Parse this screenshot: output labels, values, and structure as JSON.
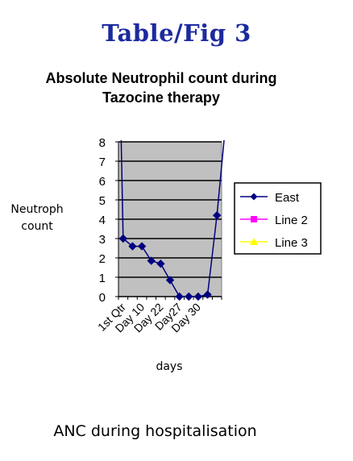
{
  "figure_title": "Table/Fig 3",
  "caption": "ANC during hospitalisation",
  "colors": {
    "title_blue": "#1c2a9e",
    "plot_background": "#c0c0c0",
    "series_east": "#000080",
    "series_line2": "#ff00ff",
    "series_line3": "#ffff00"
  },
  "chart_data": {
    "type": "line",
    "title": "Absolute Neutrophil count during Tazocine therapy",
    "title_lines": [
      "Absolute Neutrophil count during",
      "Tazocine therapy"
    ],
    "xlabel": "days",
    "ylabel": "Neutroph count",
    "ylabel_lines": [
      "Neutroph",
      "count"
    ],
    "ylim": [
      0,
      8
    ],
    "yticks": [
      0,
      1,
      2,
      3,
      4,
      5,
      6,
      7,
      8
    ],
    "grid": "horizontal",
    "legend_position": "right",
    "x_tick_labels": [
      "1st Qtr",
      "Day 10",
      "Day 22",
      "Day27",
      "Day 30"
    ],
    "x_points": 11,
    "series": [
      {
        "name": "East",
        "marker": "diamond",
        "values": [
          3.0,
          2.6,
          2.6,
          1.85,
          1.7,
          0.85,
          0.0,
          0.0,
          0.0,
          0.1,
          4.2
        ]
      },
      {
        "name": "Line 2",
        "marker": "square",
        "values": []
      },
      {
        "name": "Line 3",
        "marker": "triangle",
        "values": []
      }
    ]
  }
}
